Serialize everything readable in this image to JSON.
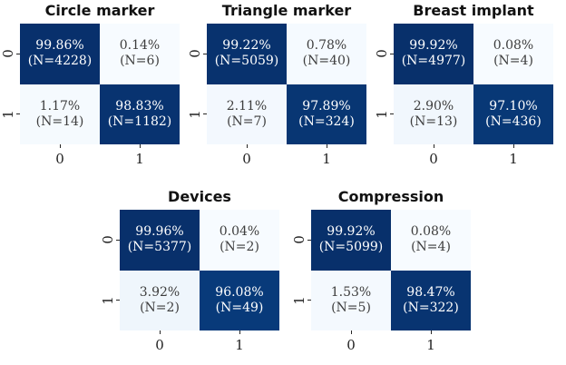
{
  "chart_data": {
    "type": "heatmap",
    "subtype": "confusion-matrix-grid",
    "x_tick_labels": [
      "0",
      "1"
    ],
    "y_tick_labels": [
      "0",
      "1"
    ],
    "value_range": [
      0,
      100
    ],
    "grid": false,
    "legend": "none",
    "colors": {
      "colormap_name": "Blues",
      "colormap_anchors": [
        "#f7fbff",
        "#deebf7",
        "#c6dbef",
        "#9ecae1",
        "#6baed6",
        "#4292c6",
        "#2171b5",
        "#08519c",
        "#08306b"
      ],
      "dark_cell_text": "#ffffff",
      "light_cell_text": "#3d3d3d",
      "tick_text": "#1f1f1f",
      "title_text": "#111111",
      "background": "#ffffff"
    },
    "layout_hint": "3 panels on top row, 2 panels centered on bottom row",
    "panels": [
      {
        "title": "Circle marker",
        "rows": [
          [
            {
              "pct": 99.86,
              "pct_label": "99.86%",
              "n_label": "(N=4228)"
            },
            {
              "pct": 0.14,
              "pct_label": "0.14%",
              "n_label": "(N=6)"
            }
          ],
          [
            {
              "pct": 1.17,
              "pct_label": "1.17%",
              "n_label": "(N=14)"
            },
            {
              "pct": 98.83,
              "pct_label": "98.83%",
              "n_label": "(N=1182)"
            }
          ]
        ]
      },
      {
        "title": "Triangle marker",
        "rows": [
          [
            {
              "pct": 99.22,
              "pct_label": "99.22%",
              "n_label": "(N=5059)"
            },
            {
              "pct": 0.78,
              "pct_label": "0.78%",
              "n_label": "(N=40)"
            }
          ],
          [
            {
              "pct": 2.11,
              "pct_label": "2.11%",
              "n_label": "(N=7)"
            },
            {
              "pct": 97.89,
              "pct_label": "97.89%",
              "n_label": "(N=324)"
            }
          ]
        ]
      },
      {
        "title": "Breast implant",
        "rows": [
          [
            {
              "pct": 99.92,
              "pct_label": "99.92%",
              "n_label": "(N=4977)"
            },
            {
              "pct": 0.08,
              "pct_label": "0.08%",
              "n_label": "(N=4)"
            }
          ],
          [
            {
              "pct": 2.9,
              "pct_label": "2.90%",
              "n_label": "(N=13)"
            },
            {
              "pct": 97.1,
              "pct_label": "97.10%",
              "n_label": "(N=436)"
            }
          ]
        ]
      },
      {
        "title": "Devices",
        "rows": [
          [
            {
              "pct": 99.96,
              "pct_label": "99.96%",
              "n_label": "(N=5377)"
            },
            {
              "pct": 0.04,
              "pct_label": "0.04%",
              "n_label": "(N=2)"
            }
          ],
          [
            {
              "pct": 3.92,
              "pct_label": "3.92%",
              "n_label": "(N=2)"
            },
            {
              "pct": 96.08,
              "pct_label": "96.08%",
              "n_label": "(N=49)"
            }
          ]
        ]
      },
      {
        "title": "Compression",
        "rows": [
          [
            {
              "pct": 99.92,
              "pct_label": "99.92%",
              "n_label": "(N=5099)"
            },
            {
              "pct": 0.08,
              "pct_label": "0.08%",
              "n_label": "(N=4)"
            }
          ],
          [
            {
              "pct": 1.53,
              "pct_label": "1.53%",
              "n_label": "(N=5)"
            },
            {
              "pct": 98.47,
              "pct_label": "98.47%",
              "n_label": "(N=322)"
            }
          ]
        ]
      }
    ]
  }
}
